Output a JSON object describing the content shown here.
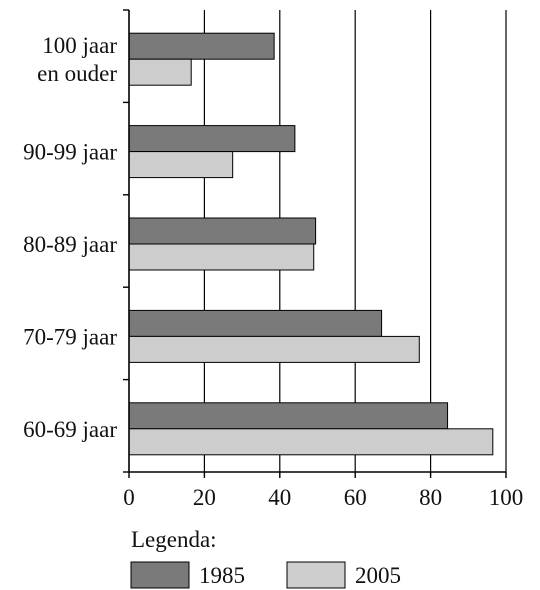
{
  "chart_data": {
    "type": "bar",
    "orientation": "horizontal",
    "categories": [
      [
        "100 jaar",
        "en ouder"
      ],
      [
        "90-99 jaar"
      ],
      [
        "80-89 jaar"
      ],
      [
        "70-79 jaar"
      ],
      [
        "60-69 jaar"
      ]
    ],
    "series": [
      {
        "name": "1985",
        "values": [
          38.5,
          44,
          49.5,
          67,
          84.5
        ],
        "color": "#7a7a7a"
      },
      {
        "name": "2005",
        "values": [
          16.5,
          27.5,
          49,
          77,
          96.5
        ],
        "color": "#cdcdcd"
      }
    ],
    "xlim": [
      0,
      100
    ],
    "xticks": [
      0,
      20,
      40,
      60,
      80,
      100
    ],
    "grid": "vertical",
    "legend": {
      "title": "Legenda:",
      "placement": "bottom-left"
    }
  }
}
